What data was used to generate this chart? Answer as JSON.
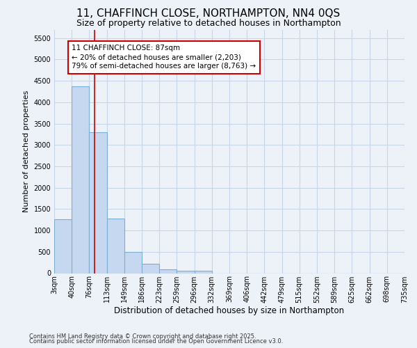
{
  "title": "11, CHAFFINCH CLOSE, NORTHAMPTON, NN4 0QS",
  "subtitle": "Size of property relative to detached houses in Northampton",
  "xlabel": "Distribution of detached houses by size in Northampton",
  "ylabel": "Number of detached properties",
  "footnote1": "Contains HM Land Registry data © Crown copyright and database right 2025.",
  "footnote2": "Contains public sector information licensed under the Open Government Licence v3.0.",
  "bin_edges": [
    3,
    40,
    76,
    113,
    149,
    186,
    223,
    259,
    296,
    332,
    369,
    406,
    442,
    479,
    515,
    552,
    589,
    625,
    662,
    698,
    735
  ],
  "bar_heights": [
    1270,
    4380,
    3300,
    1280,
    500,
    220,
    90,
    65,
    50,
    0,
    0,
    0,
    0,
    0,
    0,
    0,
    0,
    0,
    0,
    0
  ],
  "bar_color": "#c5d8ef",
  "bar_edge_color": "#7bafd4",
  "bar_edge_width": 0.8,
  "red_line_x": 87,
  "red_line_color": "#cc0000",
  "annotation_line1": "11 CHAFFINCH CLOSE: 87sqm",
  "annotation_line2": "← 20% of detached houses are smaller (2,203)",
  "annotation_line3": "79% of semi-detached houses are larger (8,763) →",
  "annotation_box_color": "#ffffff",
  "annotation_box_edge_color": "#cc0000",
  "ylim": [
    0,
    5700
  ],
  "yticks": [
    0,
    500,
    1000,
    1500,
    2000,
    2500,
    3000,
    3500,
    4000,
    4500,
    5000,
    5500
  ],
  "bg_color": "#edf2f9",
  "grid_color": "#c8d4e8",
  "title_fontsize": 11,
  "subtitle_fontsize": 9,
  "tick_label_fontsize": 7,
  "ylabel_fontsize": 8,
  "xlabel_fontsize": 8.5,
  "footnote_fontsize": 6,
  "annotation_fontsize": 7.5
}
